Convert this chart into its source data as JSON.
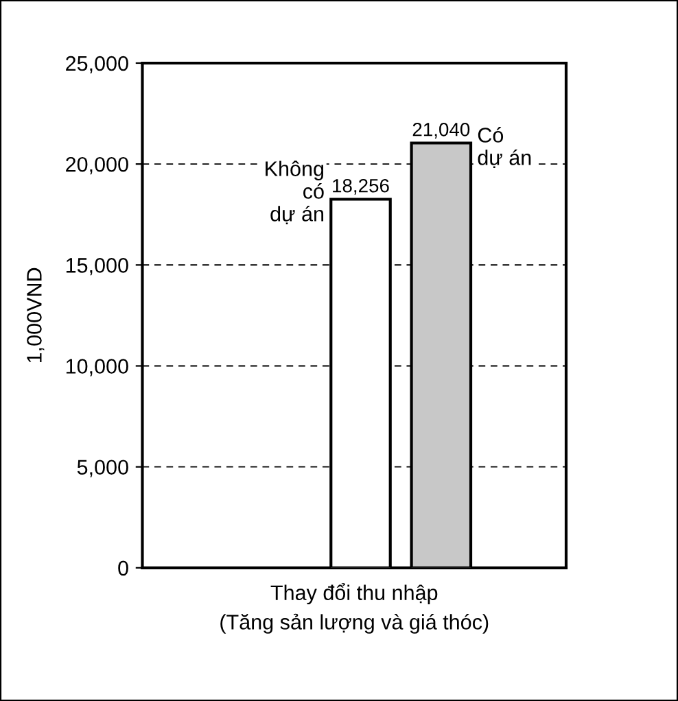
{
  "chart_data": {
    "type": "bar",
    "categories": [
      null
    ],
    "xlabel": "Thay đổi thu nhập\n(Tăng sản lượng và giá thóc)",
    "ylabel": "1,000VND",
    "series": [
      {
        "name": "Không\ncó\ndự án",
        "color": "#ffffff",
        "values": [
          18256
        ],
        "value_labels": [
          "18,256"
        ]
      },
      {
        "name": "Có\ndự án",
        "color": "#c8c8c8",
        "values": [
          21040
        ],
        "value_labels": [
          "21,040"
        ]
      }
    ],
    "ylim": [
      0,
      25000
    ],
    "yticks": [
      {
        "value": 0,
        "label": "0"
      },
      {
        "value": 5000,
        "label": "5,000"
      },
      {
        "value": 10000,
        "label": "10,000"
      },
      {
        "value": 15000,
        "label": "15,000"
      },
      {
        "value": 20000,
        "label": "20,000"
      },
      {
        "value": 25000,
        "label": "25,000"
      }
    ],
    "grid": "y",
    "legend": false
  }
}
